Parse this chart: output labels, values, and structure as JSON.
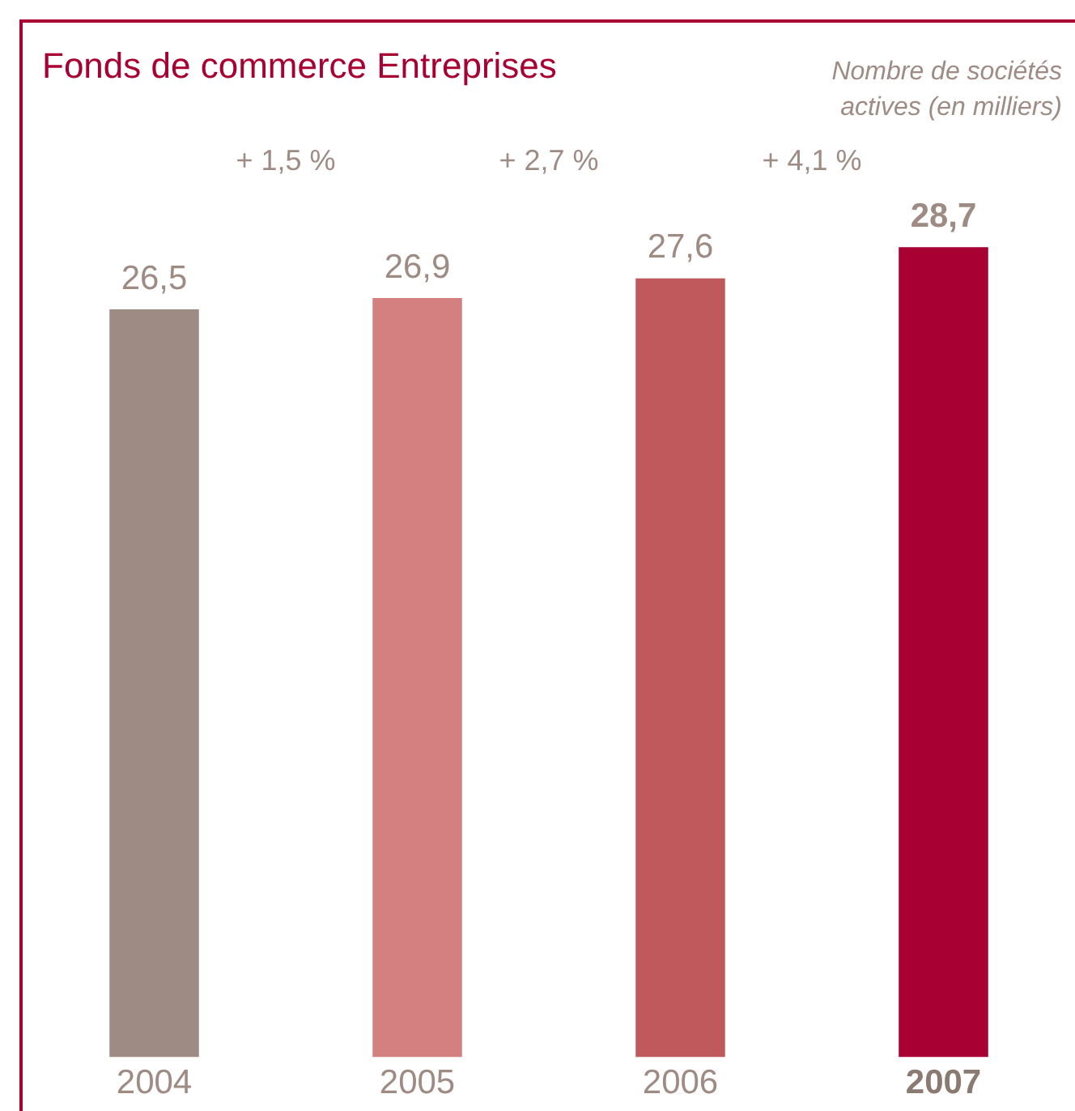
{
  "chart_data": {
    "type": "bar",
    "title": "Fonds de commerce Entreprises",
    "subtitle": "Nombre de sociétés actives (en milliers)",
    "categories": [
      "2004",
      "2005",
      "2006",
      "2007"
    ],
    "values": [
      26.5,
      26.9,
      27.6,
      28.7
    ],
    "colors": [
      "#9e8c84",
      "#d48080",
      "#c0595c",
      "#a80033"
    ],
    "value_labels": [
      "26,5",
      "26,9",
      "27,6",
      "28,7"
    ],
    "tick_labels": "x",
    "annotations": [
      "+ 1,5 %",
      "+ 2,7 %",
      "+ 4,1 %"
    ],
    "grid": false,
    "legend": false
  }
}
